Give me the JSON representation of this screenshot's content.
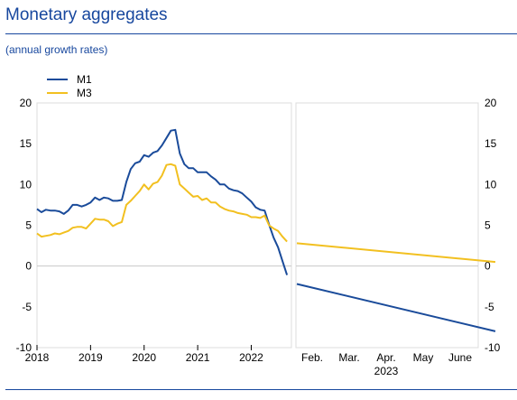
{
  "header": {
    "title": "Monetary aggregates",
    "subtitle": "(annual growth rates)"
  },
  "chart_data": {
    "type": "line",
    "title": "Monetary aggregates",
    "subtitle": "(annual growth rates)",
    "legend_position": "top-left",
    "ylim": [
      -10,
      20
    ],
    "y_ticks": [
      -10,
      -5,
      0,
      5,
      10,
      15,
      20
    ],
    "grid": false,
    "colors": {
      "M1": "#1a4b9a",
      "M3": "#f2c020",
      "zero_line": "#c8c8c8"
    },
    "legend": [
      "M1",
      "M3"
    ],
    "panels": [
      {
        "name": "history",
        "x_start": 2018.0,
        "x_end": 2022.75,
        "x_tick_labels": [
          "2018",
          "2019",
          "2020",
          "2021",
          "2022"
        ],
        "x_tick_values": [
          2018,
          2019,
          2020,
          2021,
          2022
        ],
        "series": [
          {
            "name": "M1",
            "x": [
              2018.0,
              2018.083,
              2018.167,
              2018.25,
              2018.333,
              2018.417,
              2018.5,
              2018.583,
              2018.667,
              2018.75,
              2018.833,
              2018.917,
              2019.0,
              2019.083,
              2019.167,
              2019.25,
              2019.333,
              2019.417,
              2019.5,
              2019.583,
              2019.667,
              2019.75,
              2019.833,
              2019.917,
              2020.0,
              2020.083,
              2020.167,
              2020.25,
              2020.333,
              2020.417,
              2020.5,
              2020.583,
              2020.667,
              2020.75,
              2020.833,
              2020.917,
              2021.0,
              2021.083,
              2021.167,
              2021.25,
              2021.333,
              2021.417,
              2021.5,
              2021.583,
              2021.667,
              2021.75,
              2021.833,
              2021.917,
              2022.0,
              2022.083,
              2022.167,
              2022.25,
              2022.333,
              2022.417,
              2022.5,
              2022.583,
              2022.667
            ],
            "y": [
              7.0,
              6.6,
              6.9,
              6.8,
              6.8,
              6.7,
              6.4,
              6.8,
              7.5,
              7.5,
              7.3,
              7.5,
              7.8,
              8.4,
              8.1,
              8.4,
              8.3,
              8.0,
              8.0,
              8.1,
              10.3,
              11.9,
              12.6,
              12.8,
              13.6,
              13.4,
              13.9,
              14.1,
              14.8,
              15.7,
              16.6,
              16.7,
              13.8,
              12.5,
              12.0,
              12.0,
              11.5,
              11.5,
              11.5,
              11.0,
              10.6,
              10.0,
              10.0,
              9.5,
              9.3,
              9.2,
              8.9,
              8.4,
              7.9,
              7.2,
              6.9,
              6.8,
              5.1,
              3.5,
              2.3,
              0.6,
              -1.1
            ]
          },
          {
            "name": "M3",
            "x": [
              2018.0,
              2018.083,
              2018.167,
              2018.25,
              2018.333,
              2018.417,
              2018.5,
              2018.583,
              2018.667,
              2018.75,
              2018.833,
              2018.917,
              2019.0,
              2019.083,
              2019.167,
              2019.25,
              2019.333,
              2019.417,
              2019.5,
              2019.583,
              2019.667,
              2019.75,
              2019.833,
              2019.917,
              2020.0,
              2020.083,
              2020.167,
              2020.25,
              2020.333,
              2020.417,
              2020.5,
              2020.583,
              2020.667,
              2020.75,
              2020.833,
              2020.917,
              2021.0,
              2021.083,
              2021.167,
              2021.25,
              2021.333,
              2021.417,
              2021.5,
              2021.583,
              2021.667,
              2021.75,
              2021.833,
              2021.917,
              2022.0,
              2022.083,
              2022.167,
              2022.25,
              2022.333,
              2022.417,
              2022.5,
              2022.583,
              2022.667
            ],
            "y": [
              4.0,
              3.6,
              3.7,
              3.8,
              4.0,
              3.9,
              4.1,
              4.3,
              4.7,
              4.8,
              4.8,
              4.6,
              5.2,
              5.8,
              5.7,
              5.7,
              5.5,
              4.9,
              5.2,
              5.4,
              7.5,
              8.0,
              8.6,
              9.2,
              10.0,
              9.4,
              10.1,
              10.3,
              11.1,
              12.4,
              12.5,
              12.3,
              10.0,
              9.5,
              9.0,
              8.5,
              8.6,
              8.1,
              8.3,
              7.8,
              7.8,
              7.3,
              7.0,
              6.8,
              6.7,
              6.5,
              6.4,
              6.3,
              6.0,
              6.0,
              5.9,
              6.2,
              5.0,
              4.6,
              4.3,
              3.6,
              3.0
            ]
          }
        ]
      },
      {
        "name": "projection",
        "x_labels": [
          "Feb.",
          "Mar.",
          "Apr.",
          "May",
          "June"
        ],
        "x_sublabel": "2023",
        "series": [
          {
            "name": "M1",
            "x": [
              0,
              5
            ],
            "y": [
              -2.2,
              -8.0
            ]
          },
          {
            "name": "M3",
            "x": [
              0,
              5
            ],
            "y": [
              2.8,
              0.5
            ]
          }
        ]
      }
    ]
  }
}
